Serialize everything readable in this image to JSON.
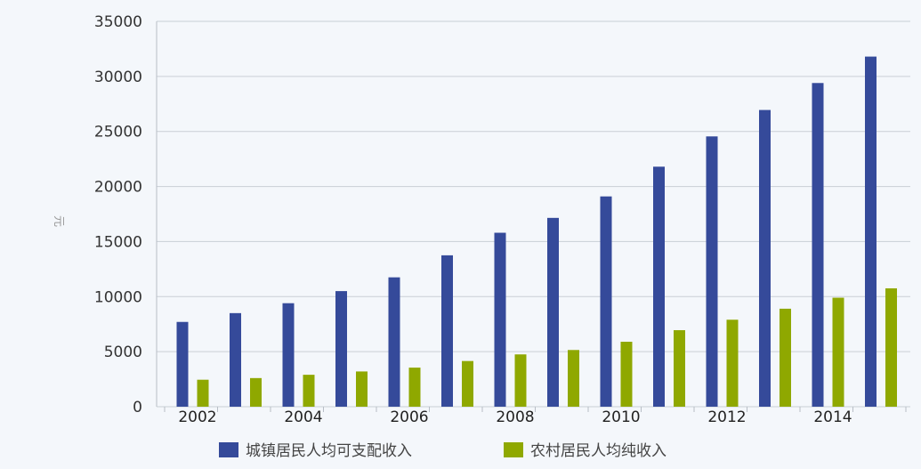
{
  "chart_data": {
    "type": "bar",
    "categories": [
      "2002",
      "2003",
      "2004",
      "2005",
      "2006",
      "2007",
      "2008",
      "2009",
      "2010",
      "2011",
      "2012",
      "2013",
      "2014",
      "2015"
    ],
    "x_tick_labels": [
      "2002",
      "2004",
      "2006",
      "2008",
      "2010",
      "2012",
      "2014"
    ],
    "series": [
      {
        "name": "城镇居民人均可支配收入",
        "color": "#354a9a",
        "values": [
          7700,
          8500,
          9400,
          10500,
          11750,
          13750,
          15800,
          17150,
          19100,
          21800,
          24550,
          26950,
          29400,
          31800
        ]
      },
      {
        "name": "农村居民人均纯收入",
        "color": "#8fa800",
        "values": [
          2450,
          2600,
          2900,
          3200,
          3550,
          4150,
          4750,
          5150,
          5900,
          6950,
          7900,
          8900,
          9900,
          10750
        ]
      }
    ],
    "ylabel": "元",
    "ylim": [
      0,
      35000
    ],
    "yticks": [
      0,
      5000,
      10000,
      15000,
      20000,
      25000,
      30000,
      35000
    ],
    "grid": true,
    "legend": "bottom-center"
  }
}
